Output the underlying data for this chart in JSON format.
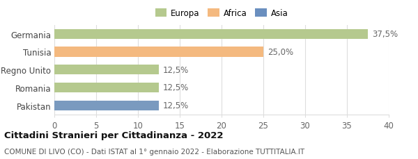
{
  "categories": [
    "Germania",
    "Tunisia",
    "Regno Unito",
    "Romania",
    "Pakistan"
  ],
  "values": [
    37.5,
    25.0,
    12.5,
    12.5,
    12.5
  ],
  "bar_colors": [
    "#b5c98e",
    "#f4b97f",
    "#b5c98e",
    "#b5c98e",
    "#7a9abf"
  ],
  "value_labels": [
    "37,5%",
    "25,0%",
    "12,5%",
    "12,5%",
    "12,5%"
  ],
  "xlim": [
    0,
    40
  ],
  "xticks": [
    0,
    5,
    10,
    15,
    20,
    25,
    30,
    35,
    40
  ],
  "legend_items": [
    {
      "label": "Europa",
      "color": "#b5c98e"
    },
    {
      "label": "Africa",
      "color": "#f4b97f"
    },
    {
      "label": "Asia",
      "color": "#6a8fbf"
    }
  ],
  "title": "Cittadini Stranieri per Cittadinanza - 2022",
  "subtitle": "COMUNE DI LIVO (CO) - Dati ISTAT al 1° gennaio 2022 - Elaborazione TUTTITALIA.IT",
  "bar_height": 0.55,
  "background_color": "#ffffff",
  "grid_color": "#dddddd",
  "label_fontsize": 8.5,
  "tick_label_fontsize": 8.5,
  "title_fontsize": 9.5,
  "subtitle_fontsize": 7.5
}
